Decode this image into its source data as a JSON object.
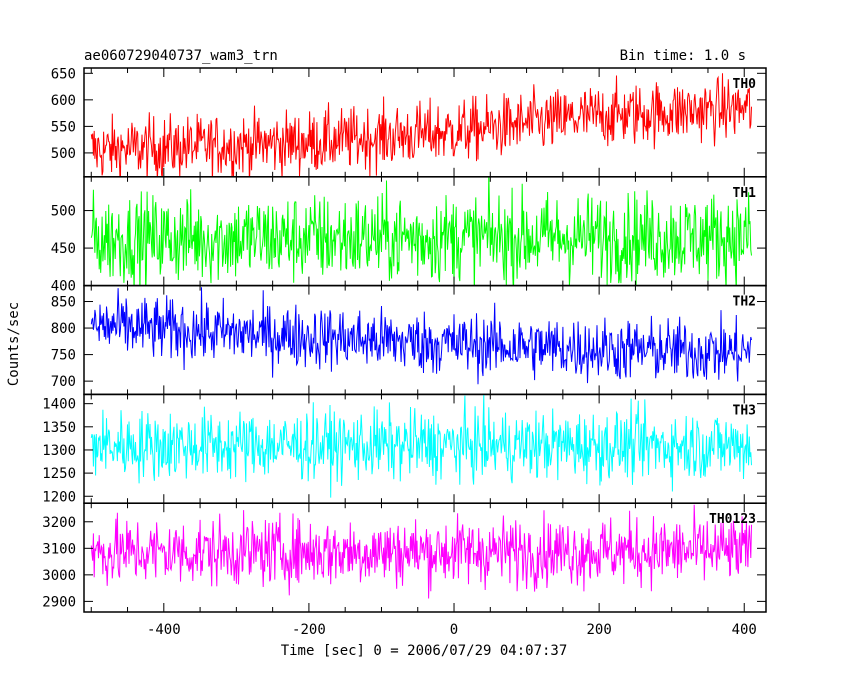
{
  "header": {
    "title": "ae060729040737_wam3_trn",
    "bin_time": "Bin time: 1.0 s"
  },
  "chart_data": {
    "type": "line",
    "xlabel": "Time [sec] 0 = 2006/07/29 04:07:37",
    "ylabel": "Counts/sec",
    "xlim": [
      -510,
      430
    ],
    "x_ticks": [
      -400,
      -200,
      0,
      200,
      400
    ],
    "x_range": [
      -500,
      410
    ],
    "grid": false,
    "panels": [
      {
        "name": "TH0",
        "color": "#ff0000",
        "ylim": [
          455,
          660
        ],
        "y_ticks": [
          500,
          550,
          600,
          650
        ],
        "trend": [
          [
            -500,
            505
          ],
          [
            -200,
            520
          ],
          [
            0,
            540
          ],
          [
            200,
            570
          ],
          [
            410,
            585
          ]
        ],
        "noise": 30
      },
      {
        "name": "TH1",
        "color": "#00ff00",
        "ylim": [
          400,
          545
        ],
        "y_ticks": [
          400,
          450,
          500
        ],
        "trend": [
          [
            -500,
            462
          ],
          [
            410,
            465
          ]
        ],
        "noise": 30
      },
      {
        "name": "TH2",
        "color": "#0000ff",
        "ylim": [
          675,
          880
        ],
        "y_ticks": [
          700,
          750,
          800,
          850
        ],
        "trend": [
          [
            -500,
            805
          ],
          [
            -300,
            790
          ],
          [
            0,
            770
          ],
          [
            200,
            760
          ],
          [
            410,
            755
          ]
        ],
        "noise": 30
      },
      {
        "name": "TH3",
        "color": "#00ffff",
        "ylim": [
          1185,
          1420
        ],
        "y_ticks": [
          1200,
          1250,
          1300,
          1350,
          1400
        ],
        "trend": [
          [
            -500,
            1310
          ],
          [
            410,
            1310
          ]
        ],
        "noise": 38
      },
      {
        "name": "TH0123",
        "color": "#ff00ff",
        "ylim": [
          2860,
          3270
        ],
        "y_ticks": [
          2900,
          3000,
          3100,
          3200
        ],
        "trend": [
          [
            -500,
            3085
          ],
          [
            410,
            3090
          ]
        ],
        "noise": 65
      }
    ]
  }
}
